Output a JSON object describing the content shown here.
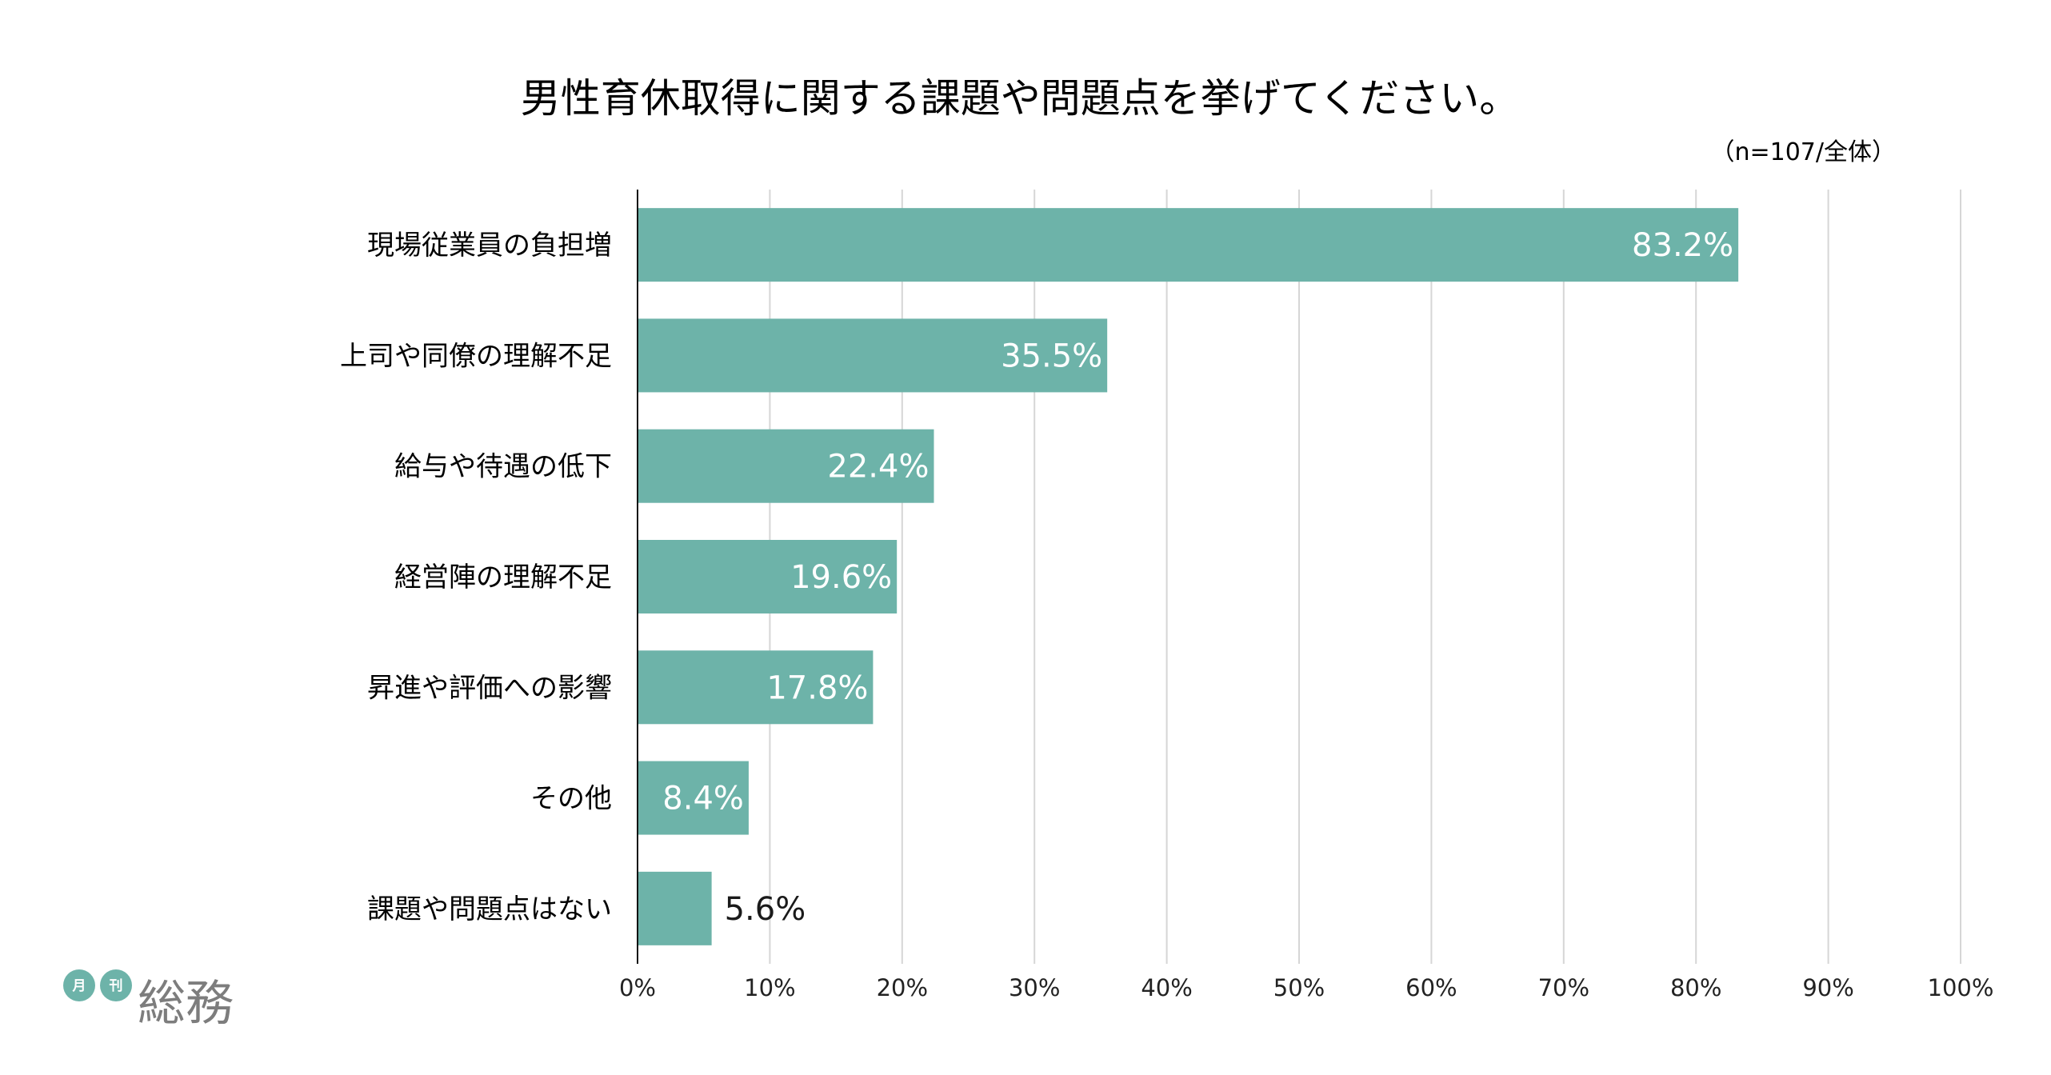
{
  "chart_data": {
    "type": "bar",
    "orientation": "horizontal",
    "title": "男性育休取得に関する課題や問題点を挙げてください。",
    "note": "（n=107/全体）",
    "categories": [
      "現場従業員の負担増",
      "上司や同僚の理解不足",
      "給与や待遇の低下",
      "経営陣の理解不足",
      "昇進や評価への影響",
      "その他",
      "課題や問題点はない"
    ],
    "values": [
      83.2,
      35.5,
      22.4,
      19.6,
      17.8,
      8.4,
      5.6
    ],
    "value_labels": [
      "83.2%",
      "35.5%",
      "22.4%",
      "19.6%",
      "17.8%",
      "8.4%",
      "5.6%"
    ],
    "xlim": [
      0,
      100
    ],
    "xticks": [
      "0%",
      "10%",
      "20%",
      "30%",
      "40%",
      "50%",
      "60%",
      "70%",
      "80%",
      "90%",
      "100%"
    ],
    "grid": true,
    "bar_color": "#6db3a9",
    "label_color_inside": "#ffffff",
    "label_color_outside": "#1a1a1a"
  },
  "logo": {
    "small_chars": [
      "月",
      "刊"
    ],
    "main_text": "総務",
    "badge_color": "#6db3a9"
  }
}
